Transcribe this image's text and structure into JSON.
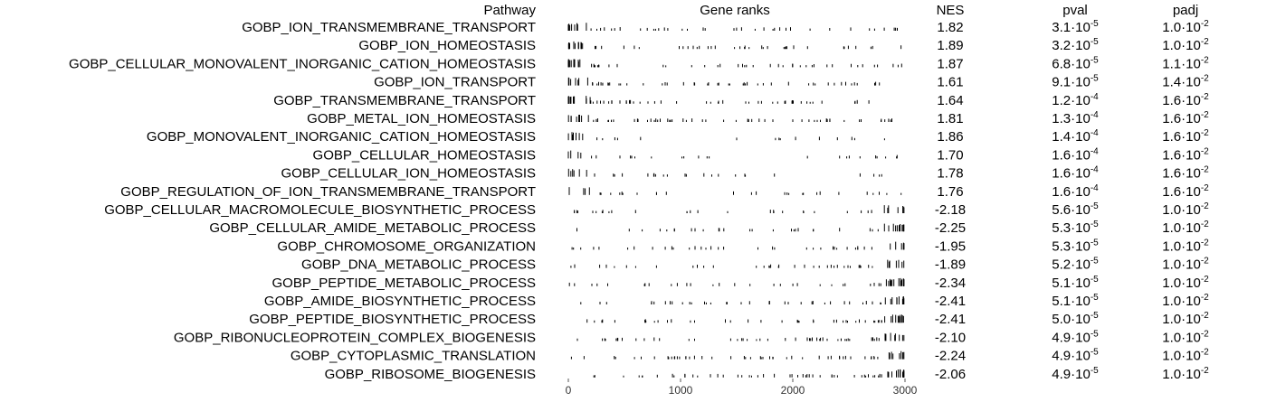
{
  "chart_data": {
    "type": "table",
    "columns": {
      "pathway": "Pathway",
      "gene_ranks": "Gene ranks",
      "nes": "NES",
      "pval": "pval",
      "padj": "padj"
    },
    "x_axis": {
      "ticks": [
        0,
        1000,
        2000,
        3000
      ],
      "range": [
        0,
        3000
      ]
    },
    "rows": [
      {
        "pathway": "GOBP_ION_TRANSMEMBRANE_TRANSPORT",
        "nes": "1.82",
        "pval_mant": "3.1",
        "pval_exp": "-5",
        "padj_mant": "1.0",
        "padj_exp": "-2"
      },
      {
        "pathway": "GOBP_ION_HOMEOSTASIS",
        "nes": "1.89",
        "pval_mant": "3.2",
        "pval_exp": "-5",
        "padj_mant": "1.0",
        "padj_exp": "-2"
      },
      {
        "pathway": "GOBP_CELLULAR_MONOVALENT_INORGANIC_CATION_HOMEOSTASIS",
        "nes": "1.87",
        "pval_mant": "6.8",
        "pval_exp": "-5",
        "padj_mant": "1.1",
        "padj_exp": "-2"
      },
      {
        "pathway": "GOBP_ION_TRANSPORT",
        "nes": "1.61",
        "pval_mant": "9.1",
        "pval_exp": "-5",
        "padj_mant": "1.4",
        "padj_exp": "-2"
      },
      {
        "pathway": "GOBP_TRANSMEMBRANE_TRANSPORT",
        "nes": "1.64",
        "pval_mant": "1.2",
        "pval_exp": "-4",
        "padj_mant": "1.6",
        "padj_exp": "-2"
      },
      {
        "pathway": "GOBP_METAL_ION_HOMEOSTASIS",
        "nes": "1.81",
        "pval_mant": "1.3",
        "pval_exp": "-4",
        "padj_mant": "1.6",
        "padj_exp": "-2"
      },
      {
        "pathway": "GOBP_MONOVALENT_INORGANIC_CATION_HOMEOSTASIS",
        "nes": "1.86",
        "pval_mant": "1.4",
        "pval_exp": "-4",
        "padj_mant": "1.6",
        "padj_exp": "-2"
      },
      {
        "pathway": "GOBP_CELLULAR_HOMEOSTASIS",
        "nes": "1.70",
        "pval_mant": "1.6",
        "pval_exp": "-4",
        "padj_mant": "1.6",
        "padj_exp": "-2"
      },
      {
        "pathway": "GOBP_CELLULAR_ION_HOMEOSTASIS",
        "nes": "1.78",
        "pval_mant": "1.6",
        "pval_exp": "-4",
        "padj_mant": "1.6",
        "padj_exp": "-2"
      },
      {
        "pathway": "GOBP_REGULATION_OF_ION_TRANSMEMBRANE_TRANSPORT",
        "nes": "1.76",
        "pval_mant": "1.6",
        "pval_exp": "-4",
        "padj_mant": "1.6",
        "padj_exp": "-2"
      },
      {
        "pathway": "GOBP_CELLULAR_MACROMOLECULE_BIOSYNTHETIC_PROCESS",
        "nes": "-2.18",
        "pval_mant": "5.6",
        "pval_exp": "-5",
        "padj_mant": "1.0",
        "padj_exp": "-2"
      },
      {
        "pathway": "GOBP_CELLULAR_AMIDE_METABOLIC_PROCESS",
        "nes": "-2.25",
        "pval_mant": "5.3",
        "pval_exp": "-5",
        "padj_mant": "1.0",
        "padj_exp": "-2"
      },
      {
        "pathway": "GOBP_CHROMOSOME_ORGANIZATION",
        "nes": "-1.95",
        "pval_mant": "5.3",
        "pval_exp": "-5",
        "padj_mant": "1.0",
        "padj_exp": "-2"
      },
      {
        "pathway": "GOBP_DNA_METABOLIC_PROCESS",
        "nes": "-1.89",
        "pval_mant": "5.2",
        "pval_exp": "-5",
        "padj_mant": "1.0",
        "padj_exp": "-2"
      },
      {
        "pathway": "GOBP_PEPTIDE_METABOLIC_PROCESS",
        "nes": "-2.34",
        "pval_mant": "5.1",
        "pval_exp": "-5",
        "padj_mant": "1.0",
        "padj_exp": "-2"
      },
      {
        "pathway": "GOBP_AMIDE_BIOSYNTHETIC_PROCESS",
        "nes": "-2.41",
        "pval_mant": "5.1",
        "pval_exp": "-5",
        "padj_mant": "1.0",
        "padj_exp": "-2"
      },
      {
        "pathway": "GOBP_PEPTIDE_BIOSYNTHETIC_PROCESS",
        "nes": "-2.41",
        "pval_mant": "5.0",
        "pval_exp": "-5",
        "padj_mant": "1.0",
        "padj_exp": "-2"
      },
      {
        "pathway": "GOBP_RIBONUCLEOPROTEIN_COMPLEX_BIOGENESIS",
        "nes": "-2.10",
        "pval_mant": "4.9",
        "pval_exp": "-5",
        "padj_mant": "1.0",
        "padj_exp": "-2"
      },
      {
        "pathway": "GOBP_CYTOPLASMIC_TRANSLATION",
        "nes": "-2.24",
        "pval_mant": "4.9",
        "pval_exp": "-5",
        "padj_mant": "1.0",
        "padj_exp": "-2"
      },
      {
        "pathway": "GOBP_RIBOSOME_BIOGENESIS",
        "nes": "-2.06",
        "pval_mant": "4.9",
        "pval_exp": "-5",
        "padj_mant": "1.0",
        "padj_exp": "-2"
      }
    ]
  }
}
